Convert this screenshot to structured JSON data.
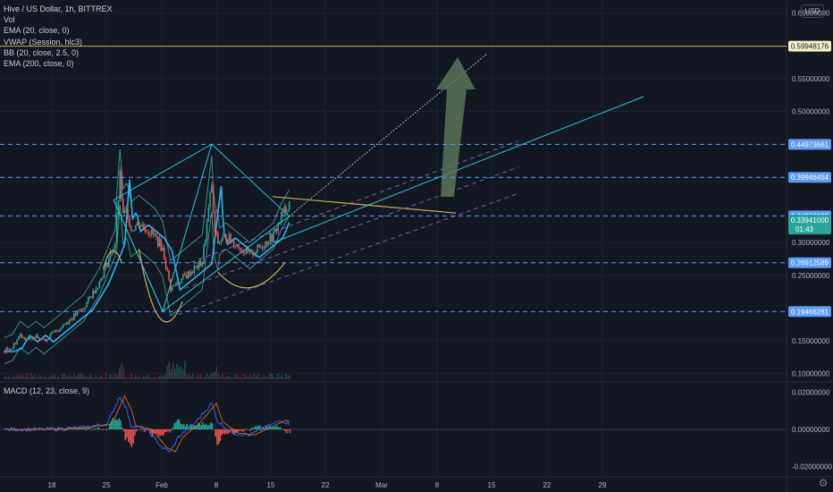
{
  "legend": {
    "title": "Hive / US Dollar, 1h, BITTREX",
    "items": [
      "Vol",
      "EMA (20, close, 0)",
      "VWAP (Session, hlc3)",
      "BB (20, close, 2.5, 0)",
      "EMA (200, close, 0)"
    ]
  },
  "macd_label": "MACD (12, 23, close, 9)",
  "currency_button": "USD",
  "colors": {
    "background": "#131722",
    "grid": "#1e222d",
    "candle_up": "#26a69a",
    "candle_down": "#ef5350",
    "ema": "#29b6f6",
    "bb": "#4db6ac",
    "pattern": "#26c6da",
    "neckline": "#c9b458",
    "cup": "#c9b458",
    "channel": "#9575cd",
    "target_arrow": "#5d7a5c",
    "level_box": "#5b9cf6",
    "current_box": "#26a69a",
    "top_level_line": "#c9b458"
  },
  "chart_data": {
    "type": "candlestick",
    "symbol": "Hive / US Dollar",
    "interval": "1h",
    "exchange": "BITTREX",
    "ylim": [
      0.09,
      0.67
    ],
    "y_ticks": [
      "0.65000000",
      "0.55000000",
      "0.50000000",
      "0.30000000",
      "0.25000000",
      "0.15000000",
      "0.10000000"
    ],
    "x_ticks": [
      "18",
      "25",
      "Feb",
      "8",
      "15",
      "22",
      "Mar",
      "8",
      "15",
      "22",
      "29"
    ],
    "price_levels": [
      {
        "label": "0.59948176",
        "value": 0.59948176,
        "style": "solid",
        "color": "#c9b458"
      },
      {
        "label": "0.44973661",
        "value": 0.44973661,
        "style": "dashed",
        "color": "#5b9cf6"
      },
      {
        "label": "0.39946454",
        "value": 0.39946454,
        "style": "dashed",
        "color": "#5b9cf6"
      },
      {
        "label": "0.34059199",
        "value": 0.34059199,
        "style": "dashed",
        "color": "#5b9cf6"
      },
      {
        "label": "0.26912589",
        "value": 0.26912589,
        "style": "dashed",
        "color": "#5b9cf6"
      },
      {
        "label": "0.19466281",
        "value": 0.19466281,
        "style": "dashed",
        "color": "#5b9cf6"
      }
    ],
    "current_price": {
      "label": "0.33941000",
      "countdown": "01:43"
    },
    "price_path": [
      [
        0,
        0.135
      ],
      [
        1,
        0.14
      ],
      [
        2,
        0.16
      ],
      [
        3,
        0.15
      ],
      [
        4,
        0.16
      ],
      [
        5,
        0.15
      ],
      [
        6,
        0.16
      ],
      [
        7,
        0.17
      ],
      [
        8,
        0.18
      ],
      [
        9,
        0.19
      ],
      [
        10,
        0.2
      ],
      [
        11,
        0.22
      ],
      [
        12,
        0.24
      ],
      [
        13,
        0.27
      ],
      [
        14,
        0.3
      ],
      [
        14.6,
        0.4
      ],
      [
        15,
        0.34
      ],
      [
        15.5,
        0.35
      ],
      [
        16,
        0.32
      ],
      [
        17,
        0.33
      ],
      [
        18,
        0.32
      ],
      [
        19,
        0.31
      ],
      [
        20,
        0.29
      ],
      [
        21,
        0.23
      ],
      [
        22,
        0.24
      ],
      [
        23,
        0.25
      ],
      [
        24,
        0.26
      ],
      [
        25,
        0.27
      ],
      [
        26.2,
        0.39
      ],
      [
        26.5,
        0.32
      ],
      [
        27,
        0.3
      ],
      [
        28,
        0.31
      ],
      [
        29,
        0.3
      ],
      [
        30,
        0.29
      ],
      [
        31,
        0.28
      ],
      [
        32,
        0.29
      ],
      [
        33,
        0.3
      ],
      [
        34,
        0.31
      ],
      [
        35,
        0.34
      ],
      [
        36,
        0.36
      ]
    ],
    "macd": {
      "ylim": [
        -0.025,
        0.025
      ],
      "y_ticks": [
        "0.02000000",
        "0.00000000",
        "-0.02000000"
      ],
      "path": [
        [
          0,
          0.0
        ],
        [
          5,
          0.0
        ],
        [
          10,
          0.001
        ],
        [
          13,
          0.003
        ],
        [
          14.6,
          0.018
        ],
        [
          15.5,
          0.01
        ],
        [
          16,
          0.002
        ],
        [
          18,
          0.0
        ],
        [
          20,
          -0.01
        ],
        [
          21,
          -0.012
        ],
        [
          22,
          -0.004
        ],
        [
          24,
          0.003
        ],
        [
          26.2,
          0.014
        ],
        [
          27,
          0.004
        ],
        [
          29,
          -0.002
        ],
        [
          31,
          -0.003
        ],
        [
          33,
          0.001
        ],
        [
          35,
          0.005
        ],
        [
          36,
          0.003
        ]
      ]
    }
  }
}
